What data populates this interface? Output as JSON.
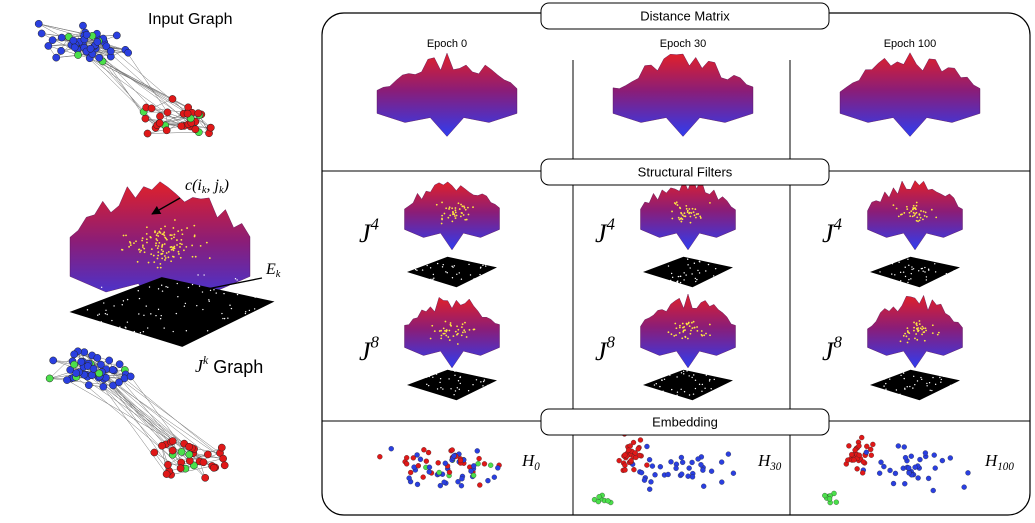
{
  "input_graph": {
    "title": "Input Graph"
  },
  "filter_illustration": {
    "surface_label": [
      {
        "math": "c(i"
      },
      {
        "sub": "k"
      },
      {
        "math": ", j"
      },
      {
        "sub": "k"
      },
      {
        "math": ")"
      }
    ],
    "floor_label": [
      {
        "math": "E"
      },
      {
        "sub": "k"
      }
    ]
  },
  "jk_graph": {
    "title": [
      {
        "math": "J"
      },
      {
        "sup": "k"
      },
      {
        "text": " Graph"
      }
    ]
  },
  "panel": {
    "distance_matrix": {
      "header": "Distance Matrix",
      "epochs": [
        "Epoch 0",
        "Epoch 30",
        "Epoch 100"
      ]
    },
    "structural_filters": {
      "header": "Structural Filters",
      "rows": [
        [
          [
            {
              "math": "J"
            },
            {
              "sup": "4"
            }
          ],
          [
            {
              "math": "J"
            },
            {
              "sup": "4"
            }
          ],
          [
            {
              "math": "J"
            },
            {
              "sup": "4"
            }
          ]
        ],
        [
          [
            {
              "math": "J"
            },
            {
              "sup": "8"
            }
          ],
          [
            {
              "math": "J"
            },
            {
              "sup": "8"
            }
          ],
          [
            {
              "math": "J"
            },
            {
              "sup": "8"
            }
          ]
        ]
      ]
    },
    "embedding": {
      "header": "Embedding",
      "labels": [
        [
          {
            "math": "H"
          },
          {
            "sub": "0"
          }
        ],
        [
          {
            "math": "H"
          },
          {
            "sub": "30"
          }
        ],
        [
          {
            "math": "H"
          },
          {
            "sub": "100"
          }
        ]
      ]
    }
  }
}
